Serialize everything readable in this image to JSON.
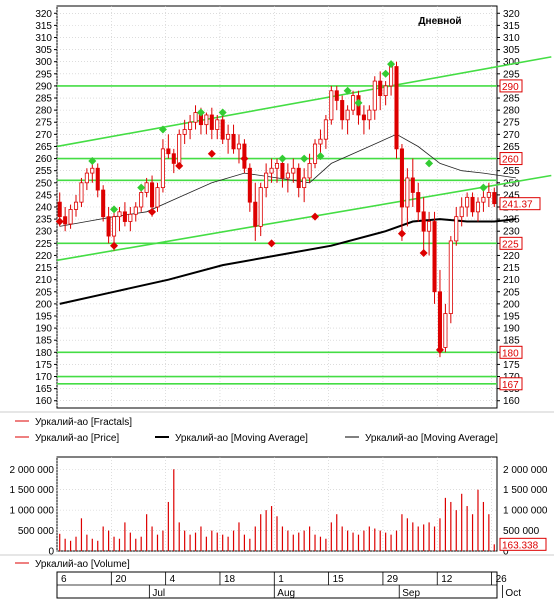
{
  "chart_data": [
    {
      "type": "candlestick",
      "title": "Дневной",
      "ylim": [
        157,
        323
      ],
      "yticks": [
        160,
        165,
        170,
        175,
        180,
        185,
        190,
        195,
        200,
        205,
        210,
        215,
        220,
        225,
        230,
        235,
        240,
        245,
        250,
        255,
        260,
        265,
        270,
        275,
        280,
        285,
        290,
        295,
        300,
        305,
        310,
        315,
        320
      ],
      "price_labels": [
        {
          "value": 290,
          "text": "290",
          "color": "#dd0000",
          "fill": "#ffffff"
        },
        {
          "value": 260,
          "text": "260",
          "color": "#dd0000",
          "fill": "#ffffff"
        },
        {
          "value": 241.37,
          "text": "241.37",
          "color": "#dd0000",
          "fill": "#ffffff"
        },
        {
          "value": 225,
          "text": "225",
          "color": "#dd0000",
          "fill": "#ffffff"
        },
        {
          "value": 180,
          "text": "180",
          "color": "#dd0000",
          "fill": "#ffffff"
        },
        {
          "value": 167,
          "text": "167",
          "color": "#dd0000",
          "fill": "#ffffff"
        }
      ],
      "horizontal_levels": [
        290,
        260,
        251,
        225,
        180,
        170,
        167
      ],
      "trendlines": [
        {
          "from": [
            0,
            265
          ],
          "to": [
            91,
            302
          ]
        },
        {
          "from": [
            0,
            218
          ],
          "to": [
            91,
            253
          ]
        }
      ],
      "ohlc": [
        [
          242,
          246,
          232,
          236
        ],
        [
          236,
          240,
          230,
          233
        ],
        [
          233,
          241,
          231,
          239
        ],
        [
          239,
          245,
          236,
          242
        ],
        [
          242,
          252,
          240,
          250
        ],
        [
          250,
          256,
          247,
          254
        ],
        [
          254,
          258,
          250,
          256
        ],
        [
          256,
          258,
          244,
          247
        ],
        [
          247,
          249,
          234,
          236
        ],
        [
          236,
          240,
          225,
          228
        ],
        [
          228,
          238,
          222,
          236
        ],
        [
          236,
          240,
          230,
          238
        ],
        [
          238,
          242,
          232,
          234
        ],
        [
          234,
          240,
          230,
          237
        ],
        [
          237,
          242,
          234,
          240
        ],
        [
          240,
          248,
          238,
          246
        ],
        [
          246,
          252,
          244,
          250
        ],
        [
          250,
          253,
          236,
          240
        ],
        [
          240,
          250,
          238,
          248
        ],
        [
          248,
          268,
          246,
          264
        ],
        [
          264,
          270,
          260,
          262
        ],
        [
          262,
          264,
          254,
          258
        ],
        [
          258,
          272,
          256,
          270
        ],
        [
          270,
          276,
          266,
          272
        ],
        [
          272,
          278,
          268,
          275
        ],
        [
          275,
          282,
          272,
          279
        ],
        [
          279,
          281,
          270,
          274
        ],
        [
          274,
          279,
          270,
          278
        ],
        [
          278,
          281,
          268,
          272
        ],
        [
          272,
          278,
          268,
          276
        ],
        [
          276,
          280,
          266,
          268
        ],
        [
          268,
          274,
          262,
          270
        ],
        [
          270,
          274,
          262,
          264
        ],
        [
          264,
          270,
          258,
          266
        ],
        [
          266,
          268,
          254,
          256
        ],
        [
          256,
          258,
          238,
          242
        ],
        [
          242,
          250,
          226,
          232
        ],
        [
          232,
          250,
          228,
          248
        ],
        [
          248,
          258,
          244,
          254
        ],
        [
          254,
          260,
          250,
          256
        ],
        [
          256,
          260,
          250,
          258
        ],
        [
          258,
          260,
          248,
          252
        ],
        [
          252,
          258,
          246,
          254
        ],
        [
          254,
          260,
          250,
          256
        ],
        [
          256,
          258,
          244,
          248
        ],
        [
          248,
          256,
          242,
          252
        ],
        [
          252,
          262,
          250,
          258
        ],
        [
          258,
          268,
          256,
          266
        ],
        [
          266,
          272,
          262,
          268
        ],
        [
          268,
          278,
          264,
          276
        ],
        [
          276,
          290,
          274,
          288
        ],
        [
          288,
          290,
          280,
          284
        ],
        [
          284,
          286,
          272,
          276
        ],
        [
          276,
          282,
          270,
          280
        ],
        [
          280,
          288,
          278,
          286
        ],
        [
          286,
          288,
          274,
          278
        ],
        [
          278,
          282,
          270,
          276
        ],
        [
          276,
          282,
          272,
          280
        ],
        [
          280,
          294,
          276,
          292
        ],
        [
          292,
          296,
          280,
          286
        ],
        [
          286,
          292,
          282,
          290
        ],
        [
          290,
          300,
          286,
          298
        ],
        [
          298,
          300,
          260,
          264
        ],
        [
          264,
          266,
          226,
          240
        ],
        [
          240,
          256,
          232,
          252
        ],
        [
          252,
          260,
          240,
          246
        ],
        [
          246,
          250,
          234,
          238
        ],
        [
          238,
          244,
          222,
          230
        ],
        [
          230,
          238,
          220,
          234
        ],
        [
          234,
          238,
          200,
          205
        ],
        [
          205,
          214,
          178,
          182
        ],
        [
          182,
          200,
          180,
          196
        ],
        [
          196,
          228,
          192,
          226
        ],
        [
          226,
          240,
          224,
          236
        ],
        [
          236,
          244,
          232,
          240
        ],
        [
          240,
          246,
          236,
          244
        ],
        [
          244,
          246,
          236,
          238
        ],
        [
          238,
          244,
          234,
          242
        ],
        [
          242,
          248,
          238,
          244
        ],
        [
          244,
          250,
          240,
          246
        ],
        [
          246,
          248,
          240,
          241.37
        ]
      ],
      "fractals_up": [
        [
          6,
          259
        ],
        [
          10,
          239
        ],
        [
          15,
          248
        ],
        [
          19,
          272
        ],
        [
          26,
          279
        ],
        [
          30,
          279
        ],
        [
          41,
          260
        ],
        [
          45,
          260
        ],
        [
          48,
          261
        ],
        [
          53,
          288
        ],
        [
          55,
          283
        ],
        [
          60,
          295
        ],
        [
          61,
          299
        ],
        [
          68,
          258
        ],
        [
          78,
          248
        ]
      ],
      "fractals_down": [
        [
          0,
          234
        ],
        [
          10,
          224
        ],
        [
          17,
          238
        ],
        [
          22,
          257
        ],
        [
          28,
          262
        ],
        [
          34,
          260
        ],
        [
          39,
          225
        ],
        [
          47,
          236
        ],
        [
          63,
          229
        ],
        [
          67,
          221
        ],
        [
          70,
          181
        ]
      ],
      "moving_average_slow": [
        [
          0,
          200
        ],
        [
          10,
          205
        ],
        [
          20,
          210
        ],
        [
          30,
          216
        ],
        [
          40,
          220
        ],
        [
          50,
          224
        ],
        [
          60,
          230
        ],
        [
          65,
          234
        ],
        [
          70,
          235
        ],
        [
          75,
          234
        ],
        [
          80,
          234
        ],
        [
          84,
          235
        ]
      ],
      "moving_average_fast": [
        [
          0,
          232
        ],
        [
          5,
          234
        ],
        [
          10,
          236
        ],
        [
          16,
          238
        ],
        [
          22,
          244
        ],
        [
          28,
          250
        ],
        [
          34,
          254
        ],
        [
          40,
          252
        ],
        [
          46,
          250
        ],
        [
          50,
          258
        ],
        [
          56,
          264
        ],
        [
          62,
          270
        ],
        [
          66,
          265
        ],
        [
          70,
          258
        ],
        [
          74,
          255
        ],
        [
          78,
          254
        ],
        [
          84,
          252
        ]
      ],
      "legend": [
        {
          "label": "Уркалий-ао [Fractals]",
          "color": "#dd0000"
        },
        {
          "label": "Уркалий-ао [Price]",
          "color": "#dd0000"
        },
        {
          "label": "Уркалий-ао [Moving Average]",
          "color": "#000000"
        },
        {
          "label": "Уркалий-ао [Moving Average]",
          "color": "#000000"
        }
      ],
      "colors": {
        "candles": "#dd0000",
        "fractal_up": "#33cc33",
        "fractal_down": "#dd0000",
        "levels": "#44dd44",
        "grid": "#c8c8c8"
      }
    },
    {
      "type": "bar",
      "ylim": [
        0,
        2300000
      ],
      "yticks_left": [
        {
          "value": 2000000,
          "text": "2 000 000"
        },
        {
          "value": 1500000,
          "text": "1 500 000"
        },
        {
          "value": 1000000,
          "text": "1 000 000"
        },
        {
          "value": 500000,
          "text": "500 000"
        },
        {
          "value": 0,
          "text": "0"
        }
      ],
      "yticks_right": [
        {
          "value": 2000000,
          "text": "2 000 000"
        },
        {
          "value": 1500000,
          "text": "1 500 000"
        },
        {
          "value": 1000000,
          "text": "1 000 000"
        },
        {
          "value": 500000,
          "text": "500 000"
        },
        {
          "value": 0,
          "text": "0"
        }
      ],
      "last_value": {
        "value": 163338,
        "text": "163.338"
      },
      "values": [
        420000,
        300000,
        250000,
        350000,
        800000,
        400000,
        300000,
        250000,
        600000,
        500000,
        350000,
        300000,
        700000,
        450000,
        300000,
        350000,
        900000,
        600000,
        400000,
        500000,
        1200000,
        2000000,
        700000,
        500000,
        400000,
        450000,
        600000,
        350000,
        500000,
        450000,
        400000,
        350000,
        500000,
        700000,
        400000,
        300000,
        600000,
        900000,
        1000000,
        1100000,
        850000,
        600000,
        500000,
        400000,
        450000,
        500000,
        600000,
        400000,
        350000,
        300000,
        700000,
        900000,
        600000,
        500000,
        450000,
        400000,
        500000,
        600000,
        550000,
        500000,
        450000,
        400000,
        500000,
        900000,
        800000,
        700000,
        600000,
        650000,
        700000,
        600000,
        800000,
        1300000,
        1200000,
        1000000,
        1400000,
        1100000,
        900000,
        1500000,
        1200000,
        900000,
        163338
      ],
      "legend": [
        {
          "label": "Уркалий-ао [Volume]",
          "color": "#dd0000"
        }
      ],
      "color": "#dd0000"
    }
  ],
  "axis": {
    "day_labels": [
      {
        "text": "6",
        "index": 0
      },
      {
        "text": "20",
        "index": 10
      },
      {
        "text": "4",
        "index": 20
      },
      {
        "text": "18",
        "index": 30
      },
      {
        "text": "1",
        "index": 40
      },
      {
        "text": "15",
        "index": 50
      },
      {
        "text": "29",
        "index": 60
      },
      {
        "text": "12",
        "index": 70
      },
      {
        "text": "26",
        "index": 80
      }
    ],
    "month_labels": [
      "Jul",
      "Aug",
      "Sep",
      "Oct"
    ]
  }
}
